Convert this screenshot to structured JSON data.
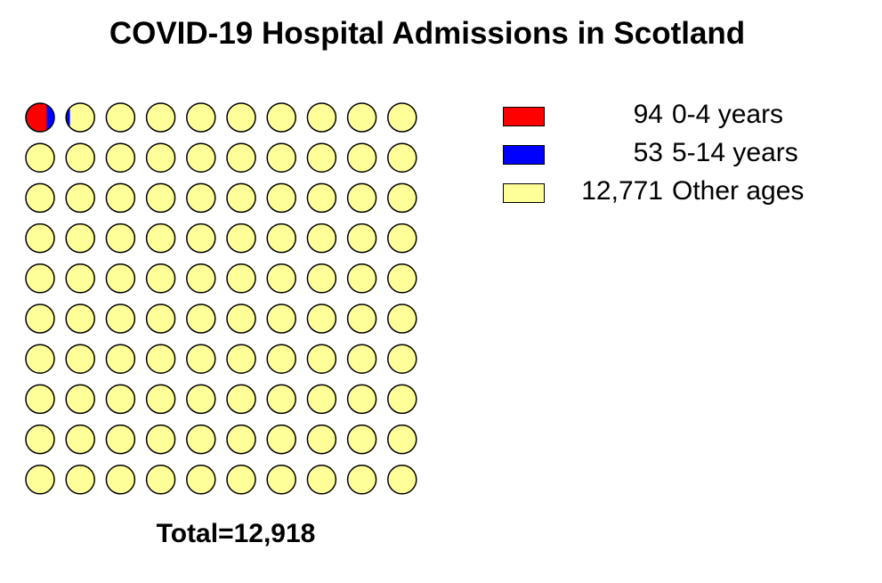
{
  "chart_data": {
    "type": "waffle",
    "title": "COVID-19 Hospital Admissions in Scotland",
    "total_label": "Total=12,918",
    "total": 12918,
    "grid": {
      "rows": 10,
      "cols": 10
    },
    "categories": [
      {
        "value": 94,
        "value_label": "94",
        "label": "0-4 years",
        "color": "#ff0000"
      },
      {
        "value": 53,
        "value_label": "53",
        "label": "5-14 years",
        "color": "#0000ff"
      },
      {
        "value": 12771,
        "value_label": "12,771",
        "label": "Other ages",
        "color": "#ffff99"
      }
    ],
    "legend_position": "top-right"
  }
}
